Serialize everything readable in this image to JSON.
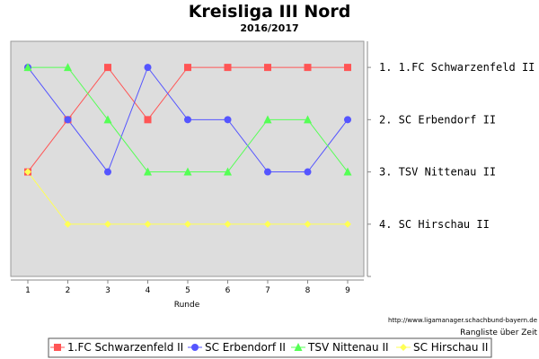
{
  "chart_data": {
    "type": "line",
    "title": "Kreisliga III Nord",
    "subtitle": "2016/2017",
    "xlabel": "Runde",
    "x": [
      1,
      2,
      3,
      4,
      5,
      6,
      7,
      8,
      9
    ],
    "ylim": [
      5,
      0.5
    ],
    "y_tick_labels": [
      "1. 1.FC Schwarzenfeld II",
      "2. SC Erbendorf II",
      "3. TSV Nittenau II",
      "4. SC Hirschau II"
    ],
    "grid": false,
    "series": [
      {
        "name": "1.FC Schwarzenfeld II",
        "color": "#ff5555",
        "marker": "square",
        "values": [
          3,
          2,
          1,
          2,
          1,
          1,
          1,
          1,
          1
        ]
      },
      {
        "name": "SC Erbendorf II",
        "color": "#5555ff",
        "marker": "circle",
        "values": [
          1,
          2,
          3,
          1,
          2,
          2,
          3,
          3,
          2
        ]
      },
      {
        "name": "TSV Nittenau II",
        "color": "#55ff55",
        "marker": "triangle",
        "values": [
          1,
          1,
          2,
          3,
          3,
          3,
          2,
          2,
          3
        ]
      },
      {
        "name": "SC Hirschau II",
        "color": "#ffff55",
        "marker": "diamond",
        "values": [
          3,
          4,
          4,
          4,
          4,
          4,
          4,
          4,
          4
        ]
      }
    ],
    "legend_position": "bottom",
    "source_text": "http://www.ligamanager.schachbund-bayern.de",
    "footer_text": "Rangliste über Zeit"
  }
}
